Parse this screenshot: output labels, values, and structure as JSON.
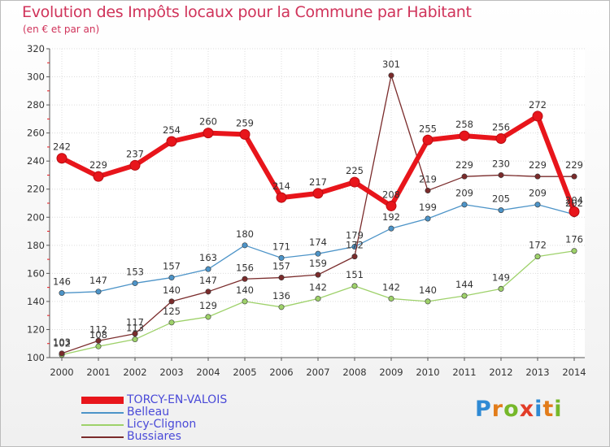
{
  "title": "Evolution des Impôts locaux pour la Commune par Habitant",
  "subtitle": "(en € et par an)",
  "logo": {
    "letters": [
      "P",
      "r",
      "o",
      "x",
      "i",
      "t",
      "i"
    ],
    "colors": [
      "#2f8ad4",
      "#e27c1a",
      "#76b82a",
      "#e23d28",
      "#2f8ad4",
      "#e27c1a",
      "#76b82a"
    ]
  },
  "chart_data": {
    "type": "line",
    "title": "Evolution des Impôts locaux pour la Commune par Habitant",
    "subtitle": "(en € et par an)",
    "xlabel": "",
    "ylabel": "",
    "ylim": [
      100,
      320
    ],
    "yticks": [
      100,
      120,
      140,
      160,
      180,
      200,
      220,
      240,
      260,
      280,
      300,
      320
    ],
    "x": [
      2000,
      2001,
      2002,
      2003,
      2004,
      2005,
      2006,
      2007,
      2008,
      2009,
      2010,
      2011,
      2012,
      2013,
      2014
    ],
    "grid": true,
    "legend_position": "bottom-left",
    "series": [
      {
        "name": "TORCY-EN-VALOIS",
        "color": "#e8151b",
        "values": [
          242,
          229,
          237,
          254,
          260,
          259,
          214,
          217,
          225,
          208,
          255,
          258,
          256,
          272,
          204
        ],
        "value_labels": [
          "242",
          "229",
          "237",
          "254",
          "260",
          "259",
          "214",
          "217",
          "225",
          "208",
          "255",
          "258",
          "256",
          "272",
          "204"
        ]
      },
      {
        "name": "Belleau",
        "color": "#4d94c8",
        "values": [
          146,
          147,
          153,
          157,
          163,
          180,
          171,
          174,
          179,
          192,
          199,
          209,
          205,
          209,
          202
        ],
        "value_labels": [
          "146",
          "147",
          "153",
          "157",
          "163",
          "180",
          "171",
          "174",
          "179",
          "192",
          "199",
          "209",
          "205",
          "209",
          "202"
        ]
      },
      {
        "name": "Licy-Clignon",
        "color": "#9ed16a",
        "values": [
          102,
          108,
          113,
          125,
          129,
          140,
          136,
          142,
          151,
          142,
          140,
          144,
          149,
          172,
          176
        ],
        "value_labels": [
          "102",
          "108",
          "113",
          "125",
          "129",
          "140",
          "136",
          "142",
          "151",
          "142",
          "140",
          "144",
          "149",
          "172",
          "176"
        ]
      },
      {
        "name": "Bussiares",
        "color": "#7a2b2b",
        "values": [
          103,
          112,
          117,
          140,
          147,
          156,
          157,
          159,
          172,
          301,
          219,
          229,
          230,
          229,
          229
        ],
        "value_labels": [
          "103",
          "112",
          "117",
          "140",
          "147",
          "156",
          "157",
          "159",
          "172",
          "301",
          "219",
          "229",
          "230",
          "229",
          "229"
        ]
      }
    ]
  }
}
